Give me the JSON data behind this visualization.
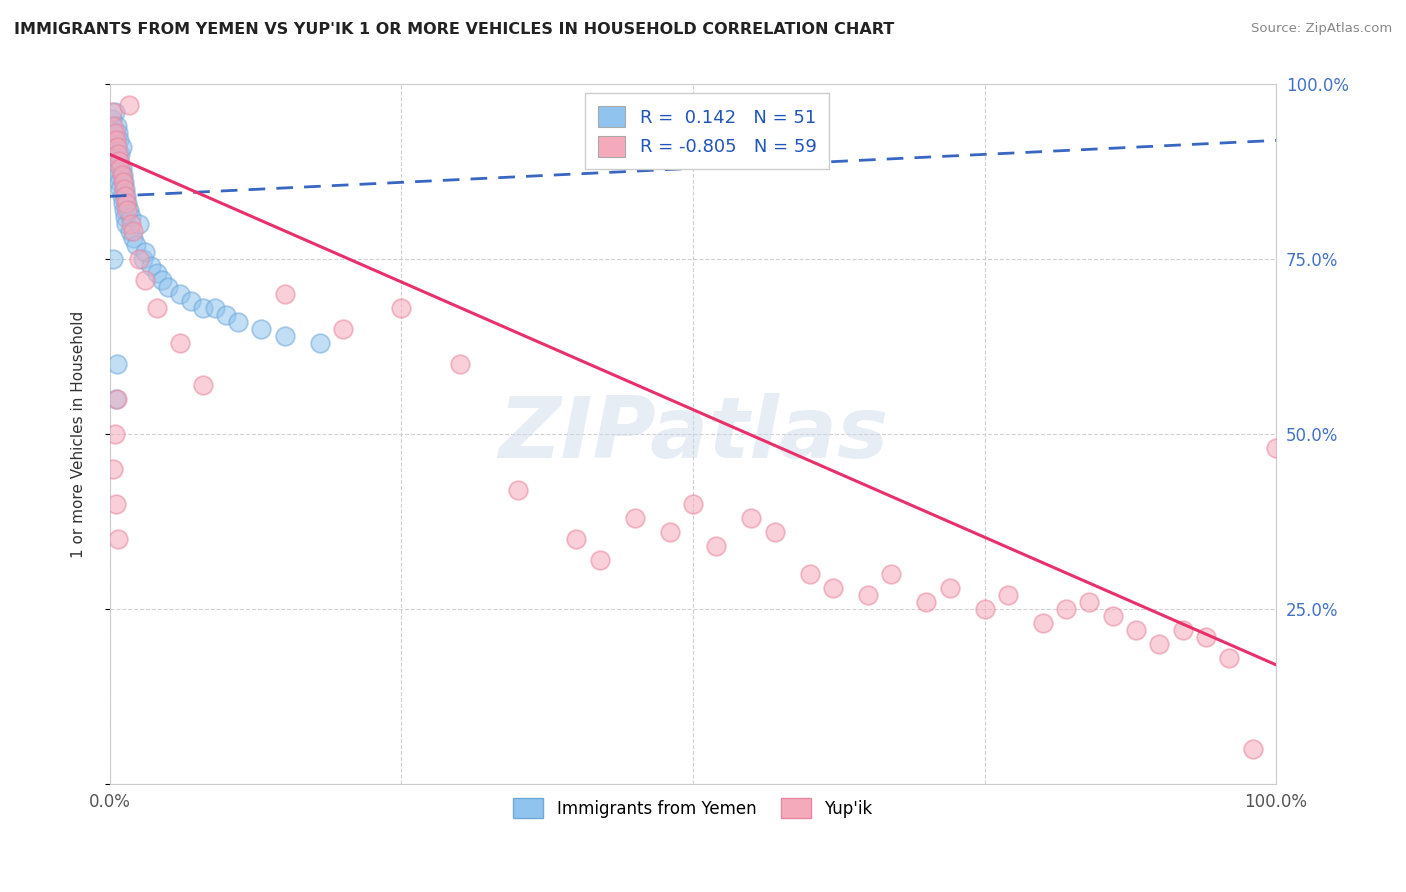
{
  "title": "IMMIGRANTS FROM YEMEN VS YUP'IK 1 OR MORE VEHICLES IN HOUSEHOLD CORRELATION CHART",
  "source": "Source: ZipAtlas.com",
  "ylabel": "1 or more Vehicles in Household",
  "xlim": [
    0,
    1.0
  ],
  "ylim": [
    0,
    1.0
  ],
  "blue_R": 0.142,
  "blue_N": 51,
  "pink_R": -0.805,
  "pink_N": 59,
  "blue_color": "#90C4EE",
  "pink_color": "#F5AABB",
  "blue_edge_color": "#70A8D8",
  "pink_edge_color": "#E888A0",
  "blue_line_color": "#2255BB",
  "pink_line_color": "#E8306A",
  "watermark_color": "#C8D8EB",
  "blue_scatter_x": [
    0.002,
    0.003,
    0.004,
    0.004,
    0.005,
    0.005,
    0.006,
    0.006,
    0.007,
    0.007,
    0.008,
    0.008,
    0.008,
    0.009,
    0.009,
    0.01,
    0.01,
    0.01,
    0.011,
    0.011,
    0.012,
    0.012,
    0.013,
    0.013,
    0.014,
    0.014,
    0.015,
    0.016,
    0.017,
    0.018,
    0.02,
    0.022,
    0.025,
    0.028,
    0.03,
    0.035,
    0.04,
    0.045,
    0.05,
    0.06,
    0.07,
    0.08,
    0.09,
    0.1,
    0.11,
    0.13,
    0.15,
    0.18,
    0.005,
    0.003,
    0.006
  ],
  "blue_scatter_y": [
    0.95,
    0.93,
    0.92,
    0.96,
    0.88,
    0.91,
    0.9,
    0.94,
    0.87,
    0.93,
    0.89,
    0.86,
    0.92,
    0.85,
    0.9,
    0.88,
    0.84,
    0.91,
    0.83,
    0.87,
    0.82,
    0.86,
    0.81,
    0.85,
    0.84,
    0.8,
    0.83,
    0.82,
    0.79,
    0.81,
    0.78,
    0.77,
    0.8,
    0.75,
    0.76,
    0.74,
    0.73,
    0.72,
    0.71,
    0.7,
    0.69,
    0.68,
    0.68,
    0.67,
    0.66,
    0.65,
    0.64,
    0.63,
    0.55,
    0.75,
    0.6
  ],
  "pink_scatter_x": [
    0.002,
    0.003,
    0.004,
    0.005,
    0.006,
    0.007,
    0.008,
    0.009,
    0.01,
    0.011,
    0.012,
    0.013,
    0.014,
    0.015,
    0.016,
    0.018,
    0.02,
    0.025,
    0.03,
    0.04,
    0.06,
    0.08,
    0.15,
    0.2,
    0.25,
    0.3,
    0.35,
    0.4,
    0.42,
    0.45,
    0.48,
    0.5,
    0.52,
    0.55,
    0.57,
    0.6,
    0.62,
    0.65,
    0.67,
    0.7,
    0.72,
    0.75,
    0.77,
    0.8,
    0.82,
    0.84,
    0.86,
    0.88,
    0.9,
    0.92,
    0.94,
    0.96,
    0.98,
    1.0,
    0.003,
    0.005,
    0.007,
    0.004,
    0.006
  ],
  "pink_scatter_y": [
    0.96,
    0.94,
    0.93,
    0.92,
    0.91,
    0.9,
    0.89,
    0.88,
    0.87,
    0.86,
    0.85,
    0.84,
    0.83,
    0.82,
    0.97,
    0.8,
    0.79,
    0.75,
    0.72,
    0.68,
    0.63,
    0.57,
    0.7,
    0.65,
    0.68,
    0.6,
    0.42,
    0.35,
    0.32,
    0.38,
    0.36,
    0.4,
    0.34,
    0.38,
    0.36,
    0.3,
    0.28,
    0.27,
    0.3,
    0.26,
    0.28,
    0.25,
    0.27,
    0.23,
    0.25,
    0.26,
    0.24,
    0.22,
    0.2,
    0.22,
    0.21,
    0.18,
    0.05,
    0.48,
    0.45,
    0.4,
    0.35,
    0.5,
    0.55
  ],
  "blue_trend_x": [
    0.0,
    1.0
  ],
  "blue_trend_y": [
    0.84,
    0.92
  ],
  "pink_trend_x": [
    0.0,
    1.0
  ],
  "pink_trend_y": [
    0.9,
    0.17
  ]
}
